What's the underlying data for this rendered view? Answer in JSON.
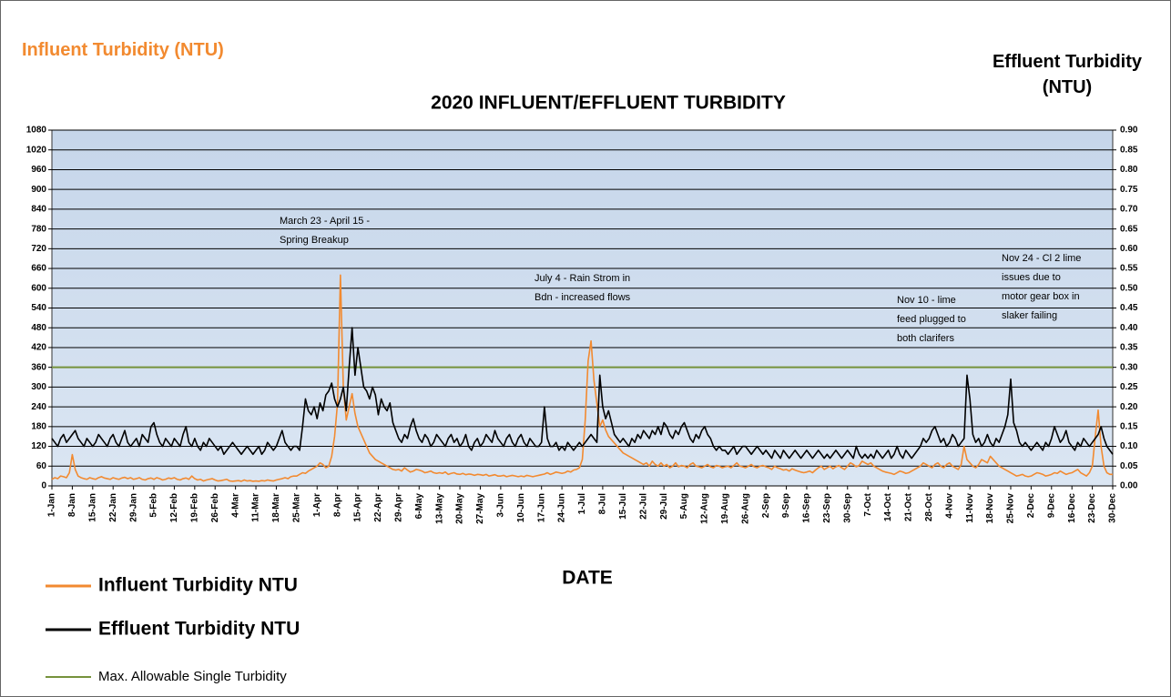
{
  "chart_data": {
    "type": "line",
    "title": "2020 INFLUENT/EFFLUENT TURBIDITY",
    "xlabel": "DATE",
    "ylabel": "Influent Turbidity (NTU)",
    "y2label": "Effluent Turbidity (NTU)",
    "ylim": [
      0,
      1080
    ],
    "yticks": [
      0,
      60,
      120,
      180,
      240,
      300,
      360,
      420,
      480,
      540,
      600,
      660,
      720,
      780,
      840,
      900,
      960,
      1020,
      1080
    ],
    "y2lim": [
      0,
      0.9
    ],
    "y2ticks": [
      {
        "value": 0,
        "label": "0.00"
      },
      {
        "value": 0.05,
        "label": "0.05"
      },
      {
        "value": 0.1,
        "label": "0.10"
      },
      {
        "value": 0.15,
        "label": "0.15"
      },
      {
        "value": 0.2,
        "label": "0.20"
      },
      {
        "value": 0.25,
        "label": "0.25"
      },
      {
        "value": 0.3,
        "label": "0.30"
      },
      {
        "value": 0.35,
        "label": "0.35"
      },
      {
        "value": 0.4,
        "label": "0.40"
      },
      {
        "value": 0.45,
        "label": "0.45"
      },
      {
        "value": 0.5,
        "label": "0.50"
      },
      {
        "value": 0.55,
        "label": "0.55"
      },
      {
        "value": 0.6,
        "label": "0.60"
      },
      {
        "value": 0.65,
        "label": "0.65"
      },
      {
        "value": 0.7,
        "label": "0.70"
      },
      {
        "value": 0.75,
        "label": "0.75"
      },
      {
        "value": 0.8,
        "label": "0.80"
      },
      {
        "value": 0.85,
        "label": "0.85"
      },
      {
        "value": 0.9,
        "label": "0.90"
      }
    ],
    "grid": true,
    "legend": "bottom-left",
    "categories": [
      "1-Jan",
      null,
      null,
      null,
      null,
      null,
      null,
      "8-Jan",
      null,
      null,
      null,
      null,
      null,
      null,
      "15-Jan",
      null,
      null,
      null,
      null,
      null,
      null,
      "22-Jan",
      null,
      null,
      null,
      null,
      null,
      null,
      "29-Jan",
      null,
      null,
      null,
      null,
      null,
      null,
      "5-Feb",
      null,
      null,
      null,
      null,
      null,
      null,
      "12-Feb",
      null,
      null,
      null,
      null,
      null,
      null,
      "19-Feb",
      null,
      null,
      null,
      null,
      null,
      null,
      "26-Feb",
      null,
      null,
      null,
      null,
      null,
      null,
      "4-Mar",
      null,
      null,
      null,
      null,
      null,
      null,
      "11-Mar",
      null,
      null,
      null,
      null,
      null,
      null,
      "18-Mar",
      null,
      null,
      null,
      null,
      null,
      null,
      "25-Mar",
      null,
      null,
      null,
      null,
      null,
      null,
      "1-Apr",
      null,
      null,
      null,
      null,
      null,
      null,
      "8-Apr",
      null,
      null,
      null,
      null,
      null,
      null,
      "15-Apr",
      null,
      null,
      null,
      null,
      null,
      null,
      "22-Apr",
      null,
      null,
      null,
      null,
      null,
      null,
      "29-Apr",
      null,
      null,
      null,
      null,
      null,
      null,
      "6-May",
      null,
      null,
      null,
      null,
      null,
      null,
      "13-May",
      null,
      null,
      null,
      null,
      null,
      null,
      "20-May",
      null,
      null,
      null,
      null,
      null,
      null,
      "27-May",
      null,
      null,
      null,
      null,
      null,
      null,
      "3-Jun",
      null,
      null,
      null,
      null,
      null,
      null,
      "10-Jun",
      null,
      null,
      null,
      null,
      null,
      null,
      "17-Jun",
      null,
      null,
      null,
      null,
      null,
      null,
      "24-Jun",
      null,
      null,
      null,
      null,
      null,
      null,
      "1-Jul",
      null,
      null,
      null,
      null,
      null,
      null,
      "8-Jul",
      null,
      null,
      null,
      null,
      null,
      null,
      "15-Jul",
      null,
      null,
      null,
      null,
      null,
      null,
      "22-Jul",
      null,
      null,
      null,
      null,
      null,
      null,
      "29-Jul",
      null,
      null,
      null,
      null,
      null,
      null,
      "5-Aug",
      null,
      null,
      null,
      null,
      null,
      null,
      "12-Aug",
      null,
      null,
      null,
      null,
      null,
      null,
      "19-Aug",
      null,
      null,
      null,
      null,
      null,
      null,
      "26-Aug",
      null,
      null,
      null,
      null,
      null,
      null,
      "2-Sep",
      null,
      null,
      null,
      null,
      null,
      null,
      "9-Sep",
      null,
      null,
      null,
      null,
      null,
      null,
      "16-Sep",
      null,
      null,
      null,
      null,
      null,
      null,
      "23-Sep",
      null,
      null,
      null,
      null,
      null,
      null,
      "30-Sep",
      null,
      null,
      null,
      null,
      null,
      null,
      "7-Oct",
      null,
      null,
      null,
      null,
      null,
      null,
      "14-Oct",
      null,
      null,
      null,
      null,
      null,
      null,
      "21-Oct",
      null,
      null,
      null,
      null,
      null,
      null,
      "28-Oct",
      null,
      null,
      null,
      null,
      null,
      null,
      "4-Nov",
      null,
      null,
      null,
      null,
      null,
      null,
      "11-Nov",
      null,
      null,
      null,
      null,
      null,
      null,
      "18-Nov",
      null,
      null,
      null,
      null,
      null,
      null,
      "25-Nov",
      null,
      null,
      null,
      null,
      null,
      null,
      "2-Dec",
      null,
      null,
      null,
      null,
      null,
      null,
      "9-Dec",
      null,
      null,
      null,
      null,
      null,
      null,
      "16-Dec",
      null,
      null,
      null,
      null,
      null,
      null,
      "23-Dec",
      null,
      null,
      null,
      null,
      null,
      null,
      "30-Dec"
    ],
    "series": [
      {
        "name": "Influent Turbidity NTU",
        "color": "#f28a30",
        "axis": "y",
        "values": [
          20,
          25,
          22,
          30,
          28,
          25,
          40,
          95,
          50,
          30,
          25,
          22,
          20,
          25,
          22,
          20,
          25,
          28,
          24,
          22,
          20,
          25,
          22,
          20,
          24,
          26,
          22,
          25,
          20,
          22,
          25,
          20,
          18,
          22,
          24,
          20,
          25,
          22,
          18,
          20,
          24,
          22,
          25,
          20,
          18,
          22,
          24,
          20,
          30,
          22,
          18,
          20,
          15,
          18,
          20,
          22,
          18,
          15,
          16,
          18,
          20,
          15,
          14,
          15,
          16,
          14,
          18,
          15,
          16,
          14,
          15,
          14,
          16,
          15,
          18,
          16,
          15,
          18,
          20,
          22,
          25,
          22,
          28,
          30,
          30,
          35,
          40,
          38,
          45,
          50,
          55,
          60,
          70,
          65,
          55,
          60,
          90,
          150,
          250,
          640,
          300,
          200,
          240,
          280,
          220,
          180,
          160,
          140,
          120,
          100,
          90,
          80,
          75,
          70,
          65,
          60,
          55,
          50,
          48,
          50,
          45,
          55,
          48,
          42,
          45,
          50,
          48,
          45,
          40,
          42,
          45,
          40,
          38,
          40,
          38,
          42,
          35,
          38,
          40,
          36,
          35,
          38,
          34,
          36,
          35,
          32,
          35,
          34,
          32,
          35,
          30,
          32,
          34,
          30,
          30,
          32,
          28,
          30,
          32,
          30,
          28,
          30,
          28,
          32,
          30,
          28,
          30,
          32,
          34,
          36,
          40,
          35,
          38,
          42,
          40,
          38,
          40,
          45,
          42,
          48,
          50,
          55,
          80,
          200,
          380,
          440,
          320,
          250,
          180,
          200,
          170,
          150,
          140,
          130,
          120,
          110,
          100,
          95,
          90,
          85,
          80,
          75,
          70,
          65,
          70,
          60,
          75,
          65,
          60,
          70,
          60,
          65,
          55,
          60,
          70,
          58,
          62,
          60,
          55,
          65,
          70,
          60,
          58,
          55,
          60,
          65,
          58,
          55,
          62,
          60,
          55,
          58,
          60,
          55,
          62,
          70,
          60,
          58,
          55,
          60,
          65,
          58,
          55,
          60,
          62,
          58,
          55,
          50,
          60,
          55,
          52,
          48,
          50,
          45,
          52,
          48,
          45,
          42,
          40,
          42,
          45,
          40,
          48,
          55,
          60,
          50,
          55,
          60,
          52,
          58,
          62,
          55,
          50,
          60,
          70,
          65,
          58,
          62,
          75,
          70,
          65,
          70,
          60,
          55,
          50,
          45,
          42,
          40,
          38,
          35,
          40,
          45,
          42,
          38,
          40,
          45,
          50,
          55,
          60,
          70,
          65,
          60,
          55,
          65,
          70,
          60,
          55,
          65,
          70,
          60,
          55,
          50,
          65,
          120,
          80,
          70,
          60,
          55,
          65,
          80,
          75,
          70,
          90,
          80,
          70,
          60,
          55,
          50,
          45,
          40,
          35,
          30,
          32,
          35,
          30,
          28,
          30,
          35,
          40,
          38,
          35,
          30,
          32,
          35,
          40,
          38,
          45,
          40,
          35,
          38,
          40,
          45,
          50,
          40,
          35,
          30,
          40,
          60,
          150,
          230,
          120,
          60,
          40,
          35,
          35
        ]
      },
      {
        "name": "Effluent Turbidity NTU",
        "color": "#000000",
        "axis": "y2",
        "values": [
          0.12,
          0.11,
          0.1,
          0.12,
          0.13,
          0.11,
          0.12,
          0.13,
          0.14,
          0.12,
          0.11,
          0.1,
          0.12,
          0.11,
          0.1,
          0.11,
          0.13,
          0.12,
          0.11,
          0.1,
          0.12,
          0.13,
          0.11,
          0.1,
          0.12,
          0.14,
          0.11,
          0.1,
          0.11,
          0.12,
          0.1,
          0.13,
          0.12,
          0.11,
          0.15,
          0.16,
          0.13,
          0.11,
          0.1,
          0.12,
          0.11,
          0.1,
          0.12,
          0.11,
          0.1,
          0.13,
          0.15,
          0.11,
          0.1,
          0.12,
          0.1,
          0.09,
          0.11,
          0.1,
          0.12,
          0.11,
          0.1,
          0.09,
          0.1,
          0.08,
          0.09,
          0.1,
          0.11,
          0.1,
          0.09,
          0.08,
          0.09,
          0.1,
          0.09,
          0.08,
          0.09,
          0.1,
          0.08,
          0.09,
          0.11,
          0.1,
          0.09,
          0.1,
          0.12,
          0.14,
          0.11,
          0.1,
          0.09,
          0.1,
          0.1,
          0.09,
          0.15,
          0.22,
          0.19,
          0.18,
          0.2,
          0.17,
          0.21,
          0.19,
          0.23,
          0.24,
          0.26,
          0.22,
          0.2,
          0.22,
          0.25,
          0.19,
          0.3,
          0.4,
          0.28,
          0.35,
          0.3,
          0.25,
          0.24,
          0.22,
          0.25,
          0.23,
          0.18,
          0.22,
          0.2,
          0.19,
          0.21,
          0.16,
          0.14,
          0.12,
          0.11,
          0.13,
          0.12,
          0.15,
          0.17,
          0.14,
          0.12,
          0.11,
          0.13,
          0.12,
          0.1,
          0.11,
          0.13,
          0.12,
          0.11,
          0.1,
          0.12,
          0.13,
          0.11,
          0.12,
          0.1,
          0.11,
          0.13,
          0.1,
          0.09,
          0.11,
          0.12,
          0.1,
          0.11,
          0.13,
          0.12,
          0.11,
          0.14,
          0.12,
          0.11,
          0.1,
          0.12,
          0.13,
          0.11,
          0.1,
          0.12,
          0.13,
          0.11,
          0.1,
          0.12,
          0.11,
          0.1,
          0.1,
          0.11,
          0.2,
          0.12,
          0.1,
          0.1,
          0.11,
          0.09,
          0.1,
          0.09,
          0.11,
          0.1,
          0.09,
          0.1,
          0.11,
          0.1,
          0.11,
          0.12,
          0.13,
          0.12,
          0.11,
          0.28,
          0.2,
          0.17,
          0.19,
          0.16,
          0.13,
          0.12,
          0.11,
          0.12,
          0.11,
          0.1,
          0.12,
          0.11,
          0.13,
          0.12,
          0.14,
          0.13,
          0.12,
          0.14,
          0.13,
          0.15,
          0.13,
          0.16,
          0.15,
          0.13,
          0.12,
          0.14,
          0.13,
          0.15,
          0.16,
          0.14,
          0.12,
          0.11,
          0.13,
          0.12,
          0.14,
          0.15,
          0.13,
          0.12,
          0.1,
          0.09,
          0.1,
          0.09,
          0.09,
          0.08,
          0.09,
          0.1,
          0.08,
          0.09,
          0.1,
          0.1,
          0.09,
          0.08,
          0.09,
          0.1,
          0.09,
          0.08,
          0.09,
          0.08,
          0.07,
          0.09,
          0.08,
          0.07,
          0.09,
          0.08,
          0.07,
          0.08,
          0.09,
          0.08,
          0.07,
          0.08,
          0.09,
          0.08,
          0.07,
          0.08,
          0.09,
          0.08,
          0.07,
          0.08,
          0.07,
          0.08,
          0.09,
          0.08,
          0.07,
          0.08,
          0.09,
          0.08,
          0.07,
          0.1,
          0.08,
          0.07,
          0.08,
          0.07,
          0.08,
          0.07,
          0.09,
          0.08,
          0.07,
          0.08,
          0.09,
          0.07,
          0.08,
          0.1,
          0.08,
          0.07,
          0.09,
          0.08,
          0.07,
          0.08,
          0.09,
          0.1,
          0.12,
          0.11,
          0.12,
          0.14,
          0.15,
          0.13,
          0.11,
          0.12,
          0.1,
          0.11,
          0.13,
          0.12,
          0.1,
          0.11,
          0.12,
          0.28,
          0.22,
          0.13,
          0.11,
          0.12,
          0.1,
          0.11,
          0.13,
          0.11,
          0.1,
          0.12,
          0.11,
          0.13,
          0.15,
          0.18,
          0.27,
          0.16,
          0.14,
          0.11,
          0.1,
          0.11,
          0.1,
          0.09,
          0.1,
          0.11,
          0.1,
          0.09,
          0.11,
          0.1,
          0.12,
          0.15,
          0.13,
          0.11,
          0.12,
          0.14,
          0.11,
          0.1,
          0.09,
          0.11,
          0.1,
          0.12,
          0.11,
          0.1,
          0.11,
          0.12,
          0.13,
          0.15,
          0.12,
          0.1,
          0.09,
          0.08
        ]
      }
    ],
    "threshold": {
      "name": "Max. Allowable Single Turbidity",
      "value": 0.3,
      "axis": "y2",
      "color": "#76923c"
    },
    "annotations": [
      {
        "lines": [
          "March 23 - April 15 -",
          "Spring Breakup"
        ]
      },
      {
        "lines": [
          "July 4 - Rain Strom in",
          "Bdn - increased flows"
        ]
      },
      {
        "lines": [
          "Nov 10 - lime",
          "feed plugged to",
          "both clarifers"
        ]
      },
      {
        "lines": [
          "Nov 24 - Cl 2 lime",
          "issues due to",
          "motor gear box in",
          "slaker failing"
        ]
      }
    ]
  }
}
